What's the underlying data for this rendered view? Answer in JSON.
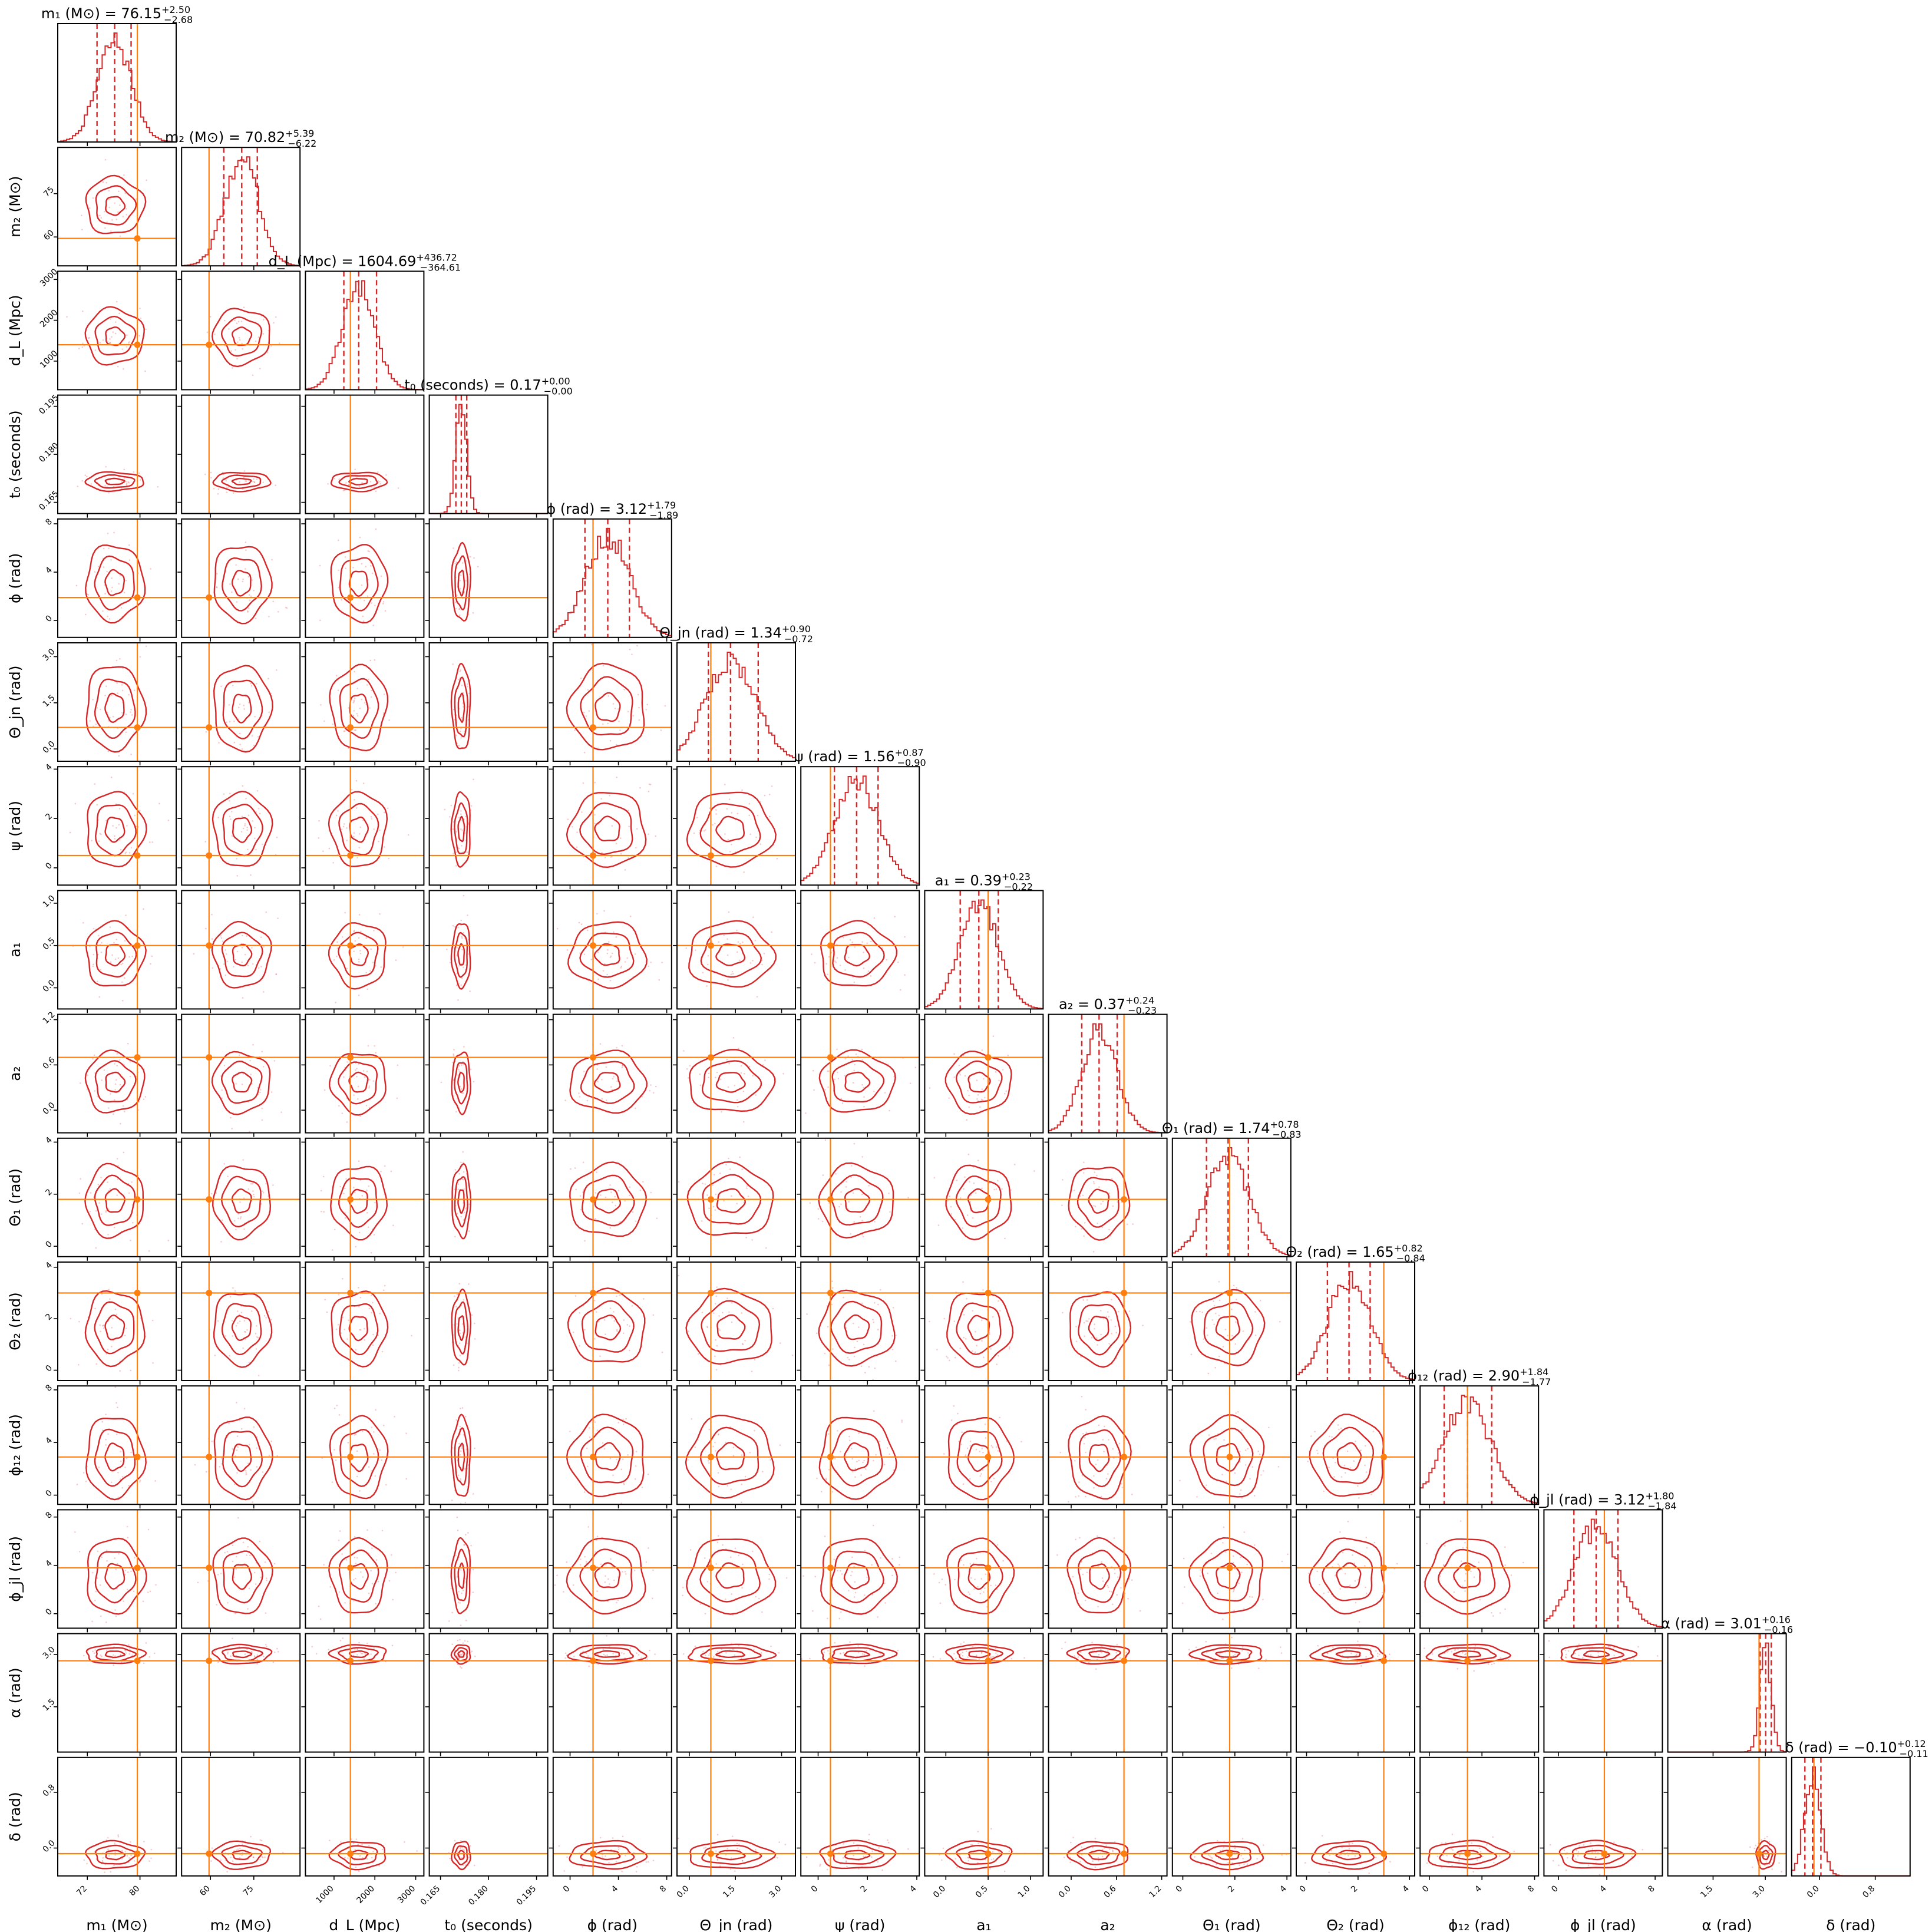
{
  "chart_data": {
    "type": "corner",
    "colors": {
      "posterior": "#d62728",
      "injection": "#ff7f0e"
    },
    "parameters": [
      {
        "label": "m₁ (M⊙)",
        "title": "m₁ (M⊙) = 76.15",
        "sup": "+2.50",
        "sub": "−2.68",
        "median": 76.15,
        "lo": 73.47,
        "hi": 78.65,
        "range": [
          67.5,
          85.5
        ],
        "ticks": [
          72,
          80
        ],
        "truth": 79.6
      },
      {
        "label": "m₂ (M⊙)",
        "title": "m₂ (M⊙) = 70.82",
        "sup": "+5.39",
        "sub": "−6.22",
        "median": 70.82,
        "lo": 64.6,
        "hi": 76.21,
        "range": [
          50,
          91
        ],
        "ticks": [
          60,
          75
        ],
        "truth": 59.5
      },
      {
        "label": "d_L (Mpc)",
        "title": "d_L (Mpc) = 1604.69",
        "sup": "+436.72",
        "sub": "−364.61",
        "median": 1604.69,
        "lo": 1240.08,
        "hi": 2041.41,
        "range": [
          300,
          3200
        ],
        "ticks": [
          1000,
          2000,
          3000
        ],
        "truth": 1400
      },
      {
        "label": "t₀ (seconds)",
        "title": "t₀ (seconds) = 0.17",
        "sup": "+0.00",
        "sub": "−0.00",
        "median": 0.1715,
        "lo": 0.1698,
        "hi": 0.1732,
        "range": [
          0.1615,
          0.1985
        ],
        "ticks": [
          0.165,
          0.18,
          0.195
        ],
        "tickText": [
          "0.165",
          "0.180",
          "0.195"
        ],
        "truth": null
      },
      {
        "label": "ϕ (rad)",
        "title": "ϕ (rad) = 3.12",
        "sup": "+1.79",
        "sub": "−1.89",
        "median": 3.12,
        "lo": 1.23,
        "hi": 4.91,
        "range": [
          -1.4,
          8.4
        ],
        "ticks": [
          0,
          4,
          8
        ],
        "truth": 1.9
      },
      {
        "label": "Θ_jn (rad)",
        "title": "Θ_jn (rad) = 1.34",
        "sup": "+0.90",
        "sub": "−0.72",
        "median": 1.34,
        "lo": 0.62,
        "hi": 2.24,
        "range": [
          -0.4,
          3.45
        ],
        "ticks": [
          0,
          1.5,
          3
        ],
        "tickText": [
          "0.0",
          "1.5",
          "3.0"
        ],
        "truth": 0.7
      },
      {
        "label": "ψ (rad)",
        "title": "ψ (rad) = 1.56",
        "sup": "+0.87",
        "sub": "−0.90",
        "median": 1.56,
        "lo": 0.66,
        "hi": 2.43,
        "range": [
          -0.7,
          4.1
        ],
        "ticks": [
          0,
          2,
          4
        ],
        "truth": 0.5
      },
      {
        "label": "a₁",
        "title": "a₁ = 0.39",
        "sup": "+0.23",
        "sub": "−0.22",
        "median": 0.39,
        "lo": 0.17,
        "hi": 0.62,
        "range": [
          -0.25,
          1.15
        ],
        "ticks": [
          0,
          0.5,
          1
        ],
        "tickText": [
          "0.0",
          "0.5",
          "1.0"
        ],
        "truth": 0.5
      },
      {
        "label": "a₂",
        "title": "a₂ = 0.37",
        "sup": "+0.24",
        "sub": "−0.23",
        "median": 0.37,
        "lo": 0.14,
        "hi": 0.61,
        "range": [
          -0.3,
          1.27
        ],
        "ticks": [
          0,
          0.6,
          1.2
        ],
        "tickText": [
          "0.0",
          "0.6",
          "1.2"
        ],
        "truth": 0.7
      },
      {
        "label": "Θ₁ (rad)",
        "title": "Θ₁ (rad) = 1.74",
        "sup": "+0.78",
        "sub": "−0.83",
        "median": 1.74,
        "lo": 0.91,
        "hi": 2.52,
        "range": [
          -0.4,
          4.15
        ],
        "ticks": [
          0,
          2,
          4
        ],
        "truth": 1.8
      },
      {
        "label": "Θ₂ (rad)",
        "title": "Θ₂ (rad) = 1.65",
        "sup": "+0.82",
        "sub": "−0.84",
        "median": 1.65,
        "lo": 0.81,
        "hi": 2.47,
        "range": [
          -0.4,
          4.2
        ],
        "ticks": [
          0,
          2,
          4
        ],
        "truth": 3.0
      },
      {
        "label": "ϕ₁₂ (rad)",
        "title": "ϕ₁₂ (rad) = 2.90",
        "sup": "+1.84",
        "sub": "−1.77",
        "median": 2.9,
        "lo": 1.13,
        "hi": 4.74,
        "range": [
          -0.7,
          8.3
        ],
        "ticks": [
          0,
          4,
          8
        ],
        "truth": 2.9
      },
      {
        "label": "ϕ_jl (rad)",
        "title": "ϕ_jl (rad) = 3.12",
        "sup": "+1.80",
        "sub": "−1.84",
        "median": 3.12,
        "lo": 1.28,
        "hi": 4.92,
        "range": [
          -1.2,
          8.6
        ],
        "ticks": [
          0,
          4,
          8
        ],
        "truth": 3.8
      },
      {
        "label": "α (rad)",
        "title": "α (rad) = 3.01",
        "sup": "+0.16",
        "sub": "−0.16",
        "median": 3.01,
        "lo": 2.85,
        "hi": 3.17,
        "range": [
          0.2,
          3.6
        ],
        "ticks": [
          1.5,
          3
        ],
        "tickText": [
          "1.5",
          "3.0"
        ],
        "truth": 2.82
      },
      {
        "label": "δ (rad)",
        "title": "δ (rad) = −0.10",
        "sup": "+0.12",
        "sub": "−0.11",
        "median": -0.1,
        "lo": -0.21,
        "hi": 0.02,
        "range": [
          -0.4,
          1.3
        ],
        "ticks": [
          0,
          0.8
        ],
        "tickText": [
          "0.0",
          "0.8"
        ],
        "truth": -0.08
      }
    ]
  }
}
